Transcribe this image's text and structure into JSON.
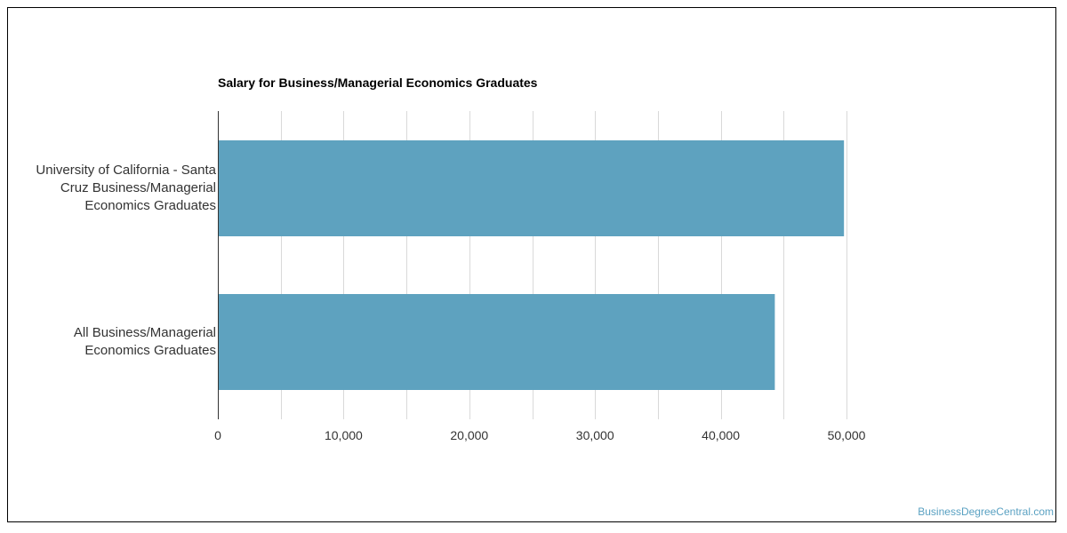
{
  "chart_data": {
    "type": "bar",
    "orientation": "horizontal",
    "title": "Salary for Business/Managerial Economics Graduates",
    "categories": [
      "University of California - Santa Cruz Business/Managerial Economics Graduates",
      "All Business/Managerial Economics Graduates"
    ],
    "category_label_lines": [
      [
        "University of California - Santa",
        "Cruz Business/Managerial",
        "Economics Graduates"
      ],
      [
        "All Business/Managerial",
        "Economics Graduates"
      ]
    ],
    "values": [
      49800,
      44300
    ],
    "xlim": [
      0,
      50000
    ],
    "xticks": [
      0,
      10000,
      20000,
      30000,
      40000,
      50000
    ],
    "xtick_labels": [
      "0",
      "10,000",
      "20,000",
      "30,000",
      "40,000",
      "50,000"
    ],
    "xlabel": "",
    "ylabel": "",
    "grid": true,
    "colors": {
      "bar": "#5ea2bf",
      "grid": "#d9d9d9",
      "axis": "#333333",
      "watermark": "#5aa1c2"
    }
  },
  "watermark": "BusinessDegreeCentral.com"
}
